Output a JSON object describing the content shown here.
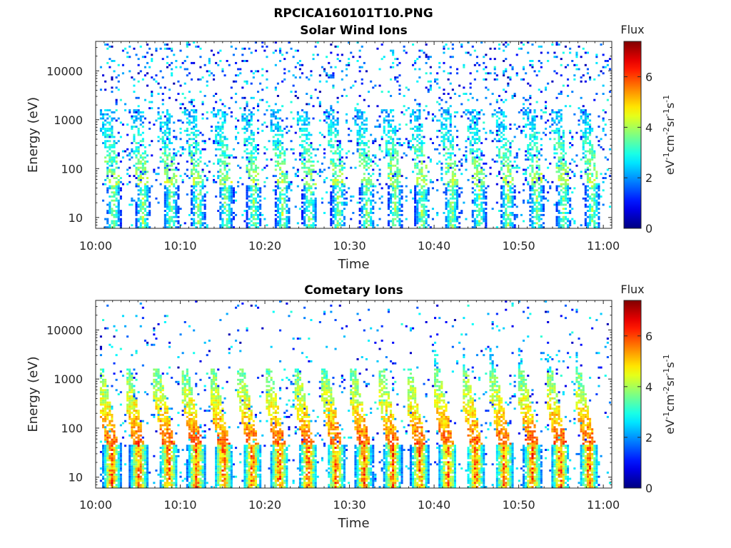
{
  "figure": {
    "filename": "RPCICA160101T10.PNG"
  },
  "chart_data": [
    {
      "type": "heatmap",
      "title": "Solar Wind Ions",
      "xlabel": "Time",
      "ylabel": "Energy (eV)",
      "x_ticks": [
        "10:00",
        "10:10",
        "10:20",
        "10:30",
        "10:40",
        "10:50",
        "11:00"
      ],
      "xlim": [
        "10:00",
        "11:01"
      ],
      "y_scale": "log",
      "y_ticks": [
        10,
        100,
        1000,
        10000
      ],
      "y_tick_labels": [
        "10",
        "100",
        "1000",
        "10000"
      ],
      "ylim": [
        6,
        40000
      ],
      "colorbar": {
        "title": "Flux",
        "label_parts": [
          "eV",
          "-1",
          "cm",
          "-2",
          "sr",
          "-1",
          "s",
          "-1"
        ],
        "ticks": [
          0,
          2,
          4,
          6
        ],
        "tick_labels": [
          "0",
          "2",
          "4",
          "6"
        ],
        "range": [
          0,
          7.4
        ],
        "colormap": "jet"
      },
      "pattern": {
        "description_note": "periodic ion bursts roughly every 3.3 minutes",
        "burst_times_min": [
          2,
          5.5,
          8.8,
          12,
          15.3,
          18.6,
          22,
          25.2,
          28.6,
          32,
          35.3,
          38.5,
          42,
          45.2,
          48.6,
          52,
          55.2,
          58.6
        ],
        "peak_flux": 4.6,
        "core_energy_eV": [
          7,
          40
        ]
      }
    },
    {
      "type": "heatmap",
      "title": "Cometary Ions",
      "xlabel": "Time",
      "ylabel": "Energy (eV)",
      "x_ticks": [
        "10:00",
        "10:10",
        "10:20",
        "10:30",
        "10:40",
        "10:50",
        "11:00"
      ],
      "xlim": [
        "10:00",
        "11:01"
      ],
      "y_scale": "log",
      "y_ticks": [
        10,
        100,
        1000,
        10000
      ],
      "y_tick_labels": [
        "10",
        "100",
        "1000",
        "10000"
      ],
      "ylim": [
        6,
        40000
      ],
      "colorbar": {
        "title": "Flux",
        "label_parts": [
          "eV",
          "-1",
          "cm",
          "-2",
          "sr",
          "-1",
          "s",
          "-1"
        ],
        "ticks": [
          0,
          2,
          4,
          6
        ],
        "tick_labels": [
          "0",
          "2",
          "4",
          "6"
        ],
        "range": [
          0,
          7.4
        ],
        "colormap": "jet"
      },
      "pattern": {
        "burst_times_min": [
          1.8,
          5,
          8.5,
          11.8,
          15,
          18.4,
          21.6,
          25,
          28.3,
          31.6,
          35,
          38.2,
          41.5,
          44.8,
          48.2,
          51.5,
          54.8,
          58.2
        ],
        "peak_flux": 6.9,
        "core_energy_eV": [
          7,
          45
        ]
      }
    }
  ]
}
